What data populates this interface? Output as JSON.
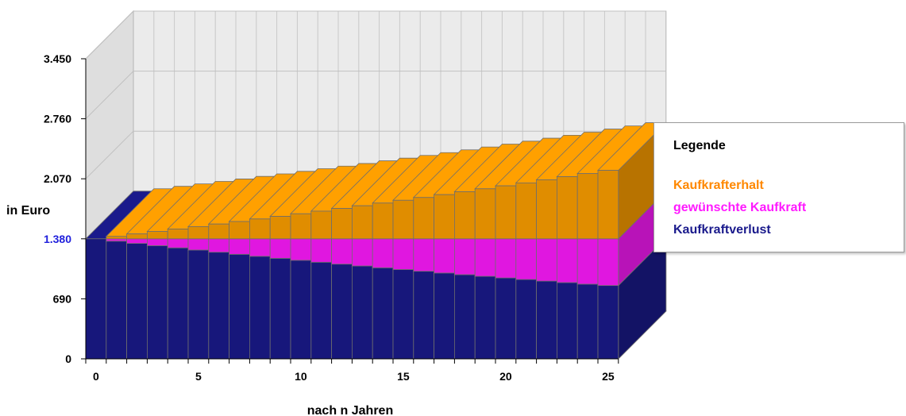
{
  "chart_data": {
    "type": "bar",
    "stacked": true,
    "three_d": true,
    "xlabel": "nach n Jahren",
    "ylabel": "in Euro",
    "categories": [
      0,
      1,
      2,
      3,
      4,
      5,
      6,
      7,
      8,
      9,
      10,
      11,
      12,
      13,
      14,
      15,
      16,
      17,
      18,
      19,
      20,
      21,
      22,
      23,
      24,
      25
    ],
    "x_tick_labels": [
      "0",
      "5",
      "10",
      "15",
      "20",
      "25"
    ],
    "y_tick_labels": [
      "0",
      "690",
      "1.380",
      "2.070",
      "2.760",
      "3.450"
    ],
    "y_ticks": [
      0,
      690,
      1380,
      2070,
      2760,
      3450
    ],
    "highlight_tick": "1.380",
    "ylim": [
      0,
      3450
    ],
    "series": [
      {
        "name": "Kaufkraftverlust",
        "color": "#1a1a8c",
        "values": [
          1380,
          1353,
          1327,
          1301,
          1276,
          1251,
          1226,
          1202,
          1179,
          1156,
          1133,
          1111,
          1089,
          1068,
          1047,
          1027,
          1007,
          987,
          968,
          949,
          930,
          912,
          894,
          877,
          859,
          843
        ]
      },
      {
        "name": "gewünschte Kaufkraft",
        "color": "#ff1aff",
        "values": [
          0,
          27,
          53,
          79,
          104,
          129,
          154,
          178,
          201,
          224,
          247,
          269,
          291,
          312,
          333,
          353,
          373,
          393,
          412,
          431,
          450,
          468,
          486,
          503,
          521,
          537
        ]
      },
      {
        "name": "Kaufkrafterhalt",
        "color": "#ffa000",
        "values": [
          0,
          28,
          56,
          84,
          112,
          140,
          170,
          199,
          228,
          258,
          288,
          318,
          349,
          380,
          411,
          443,
          475,
          508,
          541,
          575,
          609,
          643,
          678,
          714,
          750,
          787
        ]
      }
    ]
  },
  "legend": {
    "title": "Legende",
    "items": [
      {
        "label": "Kaufkrafterhalt",
        "color": "#ff8800"
      },
      {
        "label": "gewünschte Kaufkraft",
        "color": "#ff1aff"
      },
      {
        "label": "Kaufkraftverlust",
        "color": "#1a1a8c"
      }
    ]
  }
}
